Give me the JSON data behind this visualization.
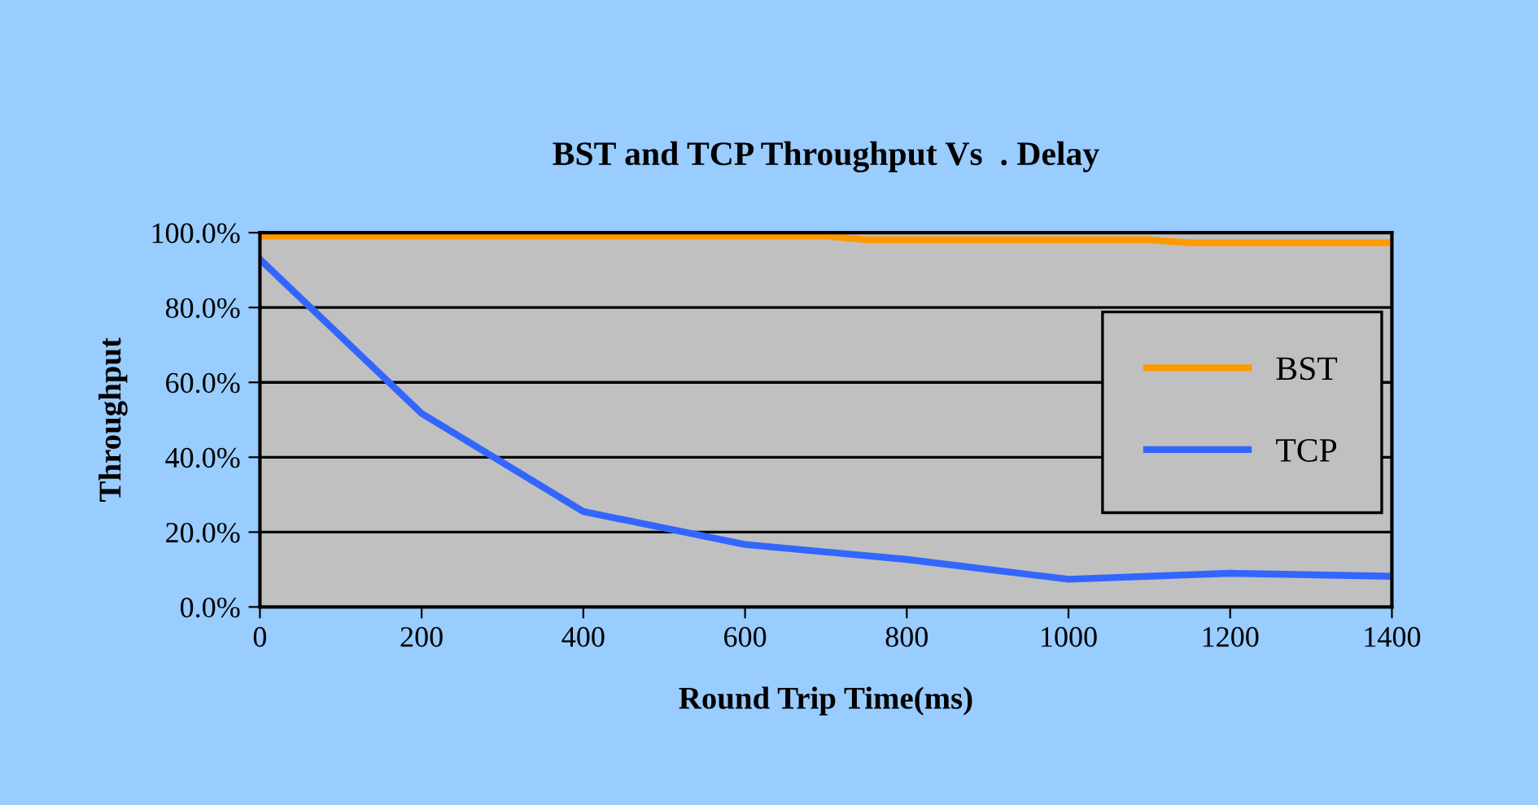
{
  "chart_data": {
    "type": "line",
    "title": "BST and TCP Throughput Vs  . Delay",
    "xlabel": "Round Trip Time(ms)",
    "ylabel": "Throughput",
    "series": [
      {
        "name": "BST",
        "color": "#ff9900",
        "x": [
          0,
          700,
          750,
          1100,
          1150,
          1400
        ],
        "values": [
          99.1,
          99.1,
          98.1,
          98.1,
          97.3,
          97.3
        ]
      },
      {
        "name": "TCP",
        "color": "#3366ff",
        "x": [
          0,
          200,
          400,
          600,
          800,
          1000,
          1200,
          1400
        ],
        "values": [
          92.9,
          51.7,
          25.5,
          16.7,
          12.7,
          7.4,
          9.0,
          8.2
        ]
      }
    ],
    "xlim": [
      0,
      1400
    ],
    "xticks": [
      0,
      200,
      400,
      600,
      800,
      1000,
      1200,
      1400
    ],
    "ylim": [
      0,
      100
    ],
    "yticks": [
      {
        "value": 0,
        "label": "0.0%"
      },
      {
        "value": 20,
        "label": "20.0%"
      },
      {
        "value": 40,
        "label": "40.0%"
      },
      {
        "value": 60,
        "label": "60.0%"
      },
      {
        "value": 80,
        "label": "80.0%"
      },
      {
        "value": 100,
        "label": "100.0%"
      }
    ],
    "grid": "y",
    "legend": "right",
    "marker": "none",
    "line_style": "solid"
  }
}
